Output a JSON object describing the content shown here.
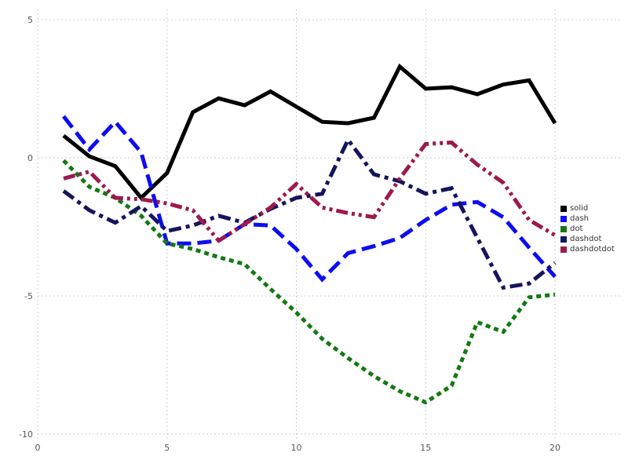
{
  "chart_data": {
    "type": "line",
    "title": "",
    "xlabel": "",
    "ylabel": "",
    "xlim": [
      0,
      20
    ],
    "ylim": [
      -10,
      5
    ],
    "x_ticks": [
      0,
      5,
      10,
      15,
      20
    ],
    "y_ticks": [
      5,
      0,
      -5,
      -10
    ],
    "grid": true,
    "grid_style": "dotted",
    "grid_color": "#ccccd9",
    "tick_label_color": "#555560",
    "legend_position": "right-outside",
    "x": [
      1,
      2,
      3,
      4,
      5,
      6,
      7,
      8,
      9,
      10,
      11,
      12,
      13,
      14,
      15,
      16,
      17,
      18,
      19,
      20
    ],
    "series": [
      {
        "name": "solid",
        "color": "#000000",
        "dash": "solid",
        "values": [
          0.8,
          0.05,
          -0.3,
          -1.45,
          -0.55,
          1.65,
          2.15,
          1.9,
          2.4,
          1.85,
          1.3,
          1.25,
          1.45,
          3.3,
          2.5,
          2.55,
          2.3,
          2.65,
          2.8,
          1.25
        ]
      },
      {
        "name": "dash",
        "color": "#0d0df0",
        "dash": "dash",
        "values": [
          1.5,
          0.3,
          1.3,
          0.2,
          -3.1,
          -3.1,
          -3.0,
          -2.4,
          -2.45,
          -3.3,
          -4.4,
          -3.45,
          -3.2,
          -2.9,
          -2.25,
          -1.7,
          -1.6,
          -2.15,
          -3.25,
          -4.3
        ]
      },
      {
        "name": "dot",
        "color": "#157815",
        "dash": "dot",
        "values": [
          -0.1,
          -1.05,
          -1.45,
          -2.1,
          -3.1,
          -3.3,
          -3.6,
          -3.85,
          -4.75,
          -5.6,
          -6.55,
          -7.25,
          -7.9,
          -8.45,
          -8.85,
          -8.25,
          -5.95,
          -6.3,
          -5.05,
          -4.95
        ]
      },
      {
        "name": "dashdot",
        "color": "#15155c",
        "dash": "dashdot",
        "values": [
          -1.2,
          -1.9,
          -2.35,
          -1.75,
          -2.65,
          -2.45,
          -2.1,
          -2.35,
          -1.85,
          -1.45,
          -1.3,
          0.65,
          -0.6,
          -0.85,
          -1.3,
          -1.1,
          -2.9,
          -4.7,
          -4.55,
          -3.8
        ]
      },
      {
        "name": "dashdotdot",
        "color": "#9c1a4e",
        "dash": "dashdotdot",
        "values": [
          -0.75,
          -0.5,
          -1.45,
          -1.5,
          -1.65,
          -1.9,
          -3.0,
          -2.4,
          -1.8,
          -0.95,
          -1.8,
          -2.0,
          -2.15,
          -0.75,
          0.5,
          0.55,
          -0.25,
          -0.9,
          -2.25,
          -2.8
        ]
      }
    ]
  }
}
